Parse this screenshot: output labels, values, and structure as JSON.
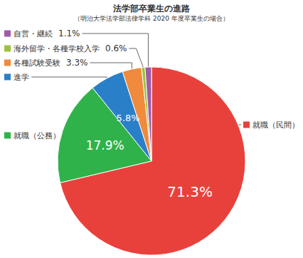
{
  "chart_data": {
    "type": "pie",
    "title": "法学部卒業生の進路",
    "subtitle": "（明治大学法学部法律学科 2020 年度卒業生の場合）",
    "categories": [
      "就職（民間）",
      "就職（公務）",
      "進学",
      "各種試験受験",
      "海外留学・各種学校入学",
      "自営・継続"
    ],
    "values": [
      71.3,
      17.9,
      5.8,
      3.3,
      0.6,
      1.1
    ],
    "value_labels": [
      "71.3%",
      "17.9%",
      "5.8%",
      "3.3%",
      "0.6%",
      "1.1%"
    ],
    "colors": [
      "#e8413c",
      "#2fb24a",
      "#2a7fc9",
      "#f08a3c",
      "#9cc43a",
      "#a05aa8"
    ],
    "data_labels": true
  }
}
